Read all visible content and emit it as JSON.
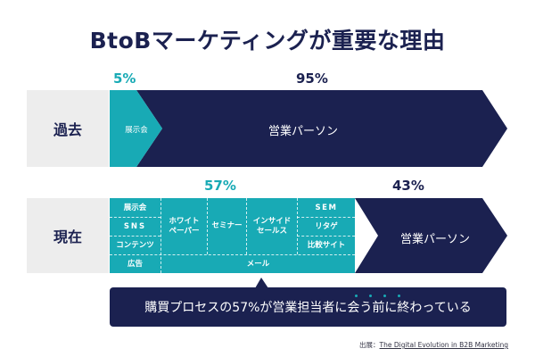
{
  "title": "BtoBマーケティングが重要な理由",
  "past": {
    "label": "過去",
    "teal_pct": "5%",
    "navy_pct": "95%",
    "teal_item": "展示会",
    "navy_item": "営業パーソン"
  },
  "present": {
    "label": "現在",
    "teal_pct": "57%",
    "navy_pct": "43%",
    "items": {
      "exhibition": "展示会",
      "sns": "SNS",
      "content": "コンテンツ",
      "ad": "広告",
      "whitepaper_line1": "ホワイト",
      "whitepaper_line2": "ペーパー",
      "seminar": "セミナー",
      "inside_sales_line1": "インサイド",
      "inside_sales_line2": "セールス",
      "sem": "SEM",
      "retargeting": "リタゲ",
      "comparison_site": "比較サイト",
      "email": "メール"
    },
    "navy_item": "営業パーソン"
  },
  "note": "購買プロセスの57%が営業担当者に会う前に終わっている",
  "source": {
    "prefix": "出展：",
    "text": "The Digital Evolution in B2B Marketing"
  },
  "colors": {
    "navy": "#1b2150",
    "teal": "#18aab5",
    "gray": "#ededed"
  }
}
